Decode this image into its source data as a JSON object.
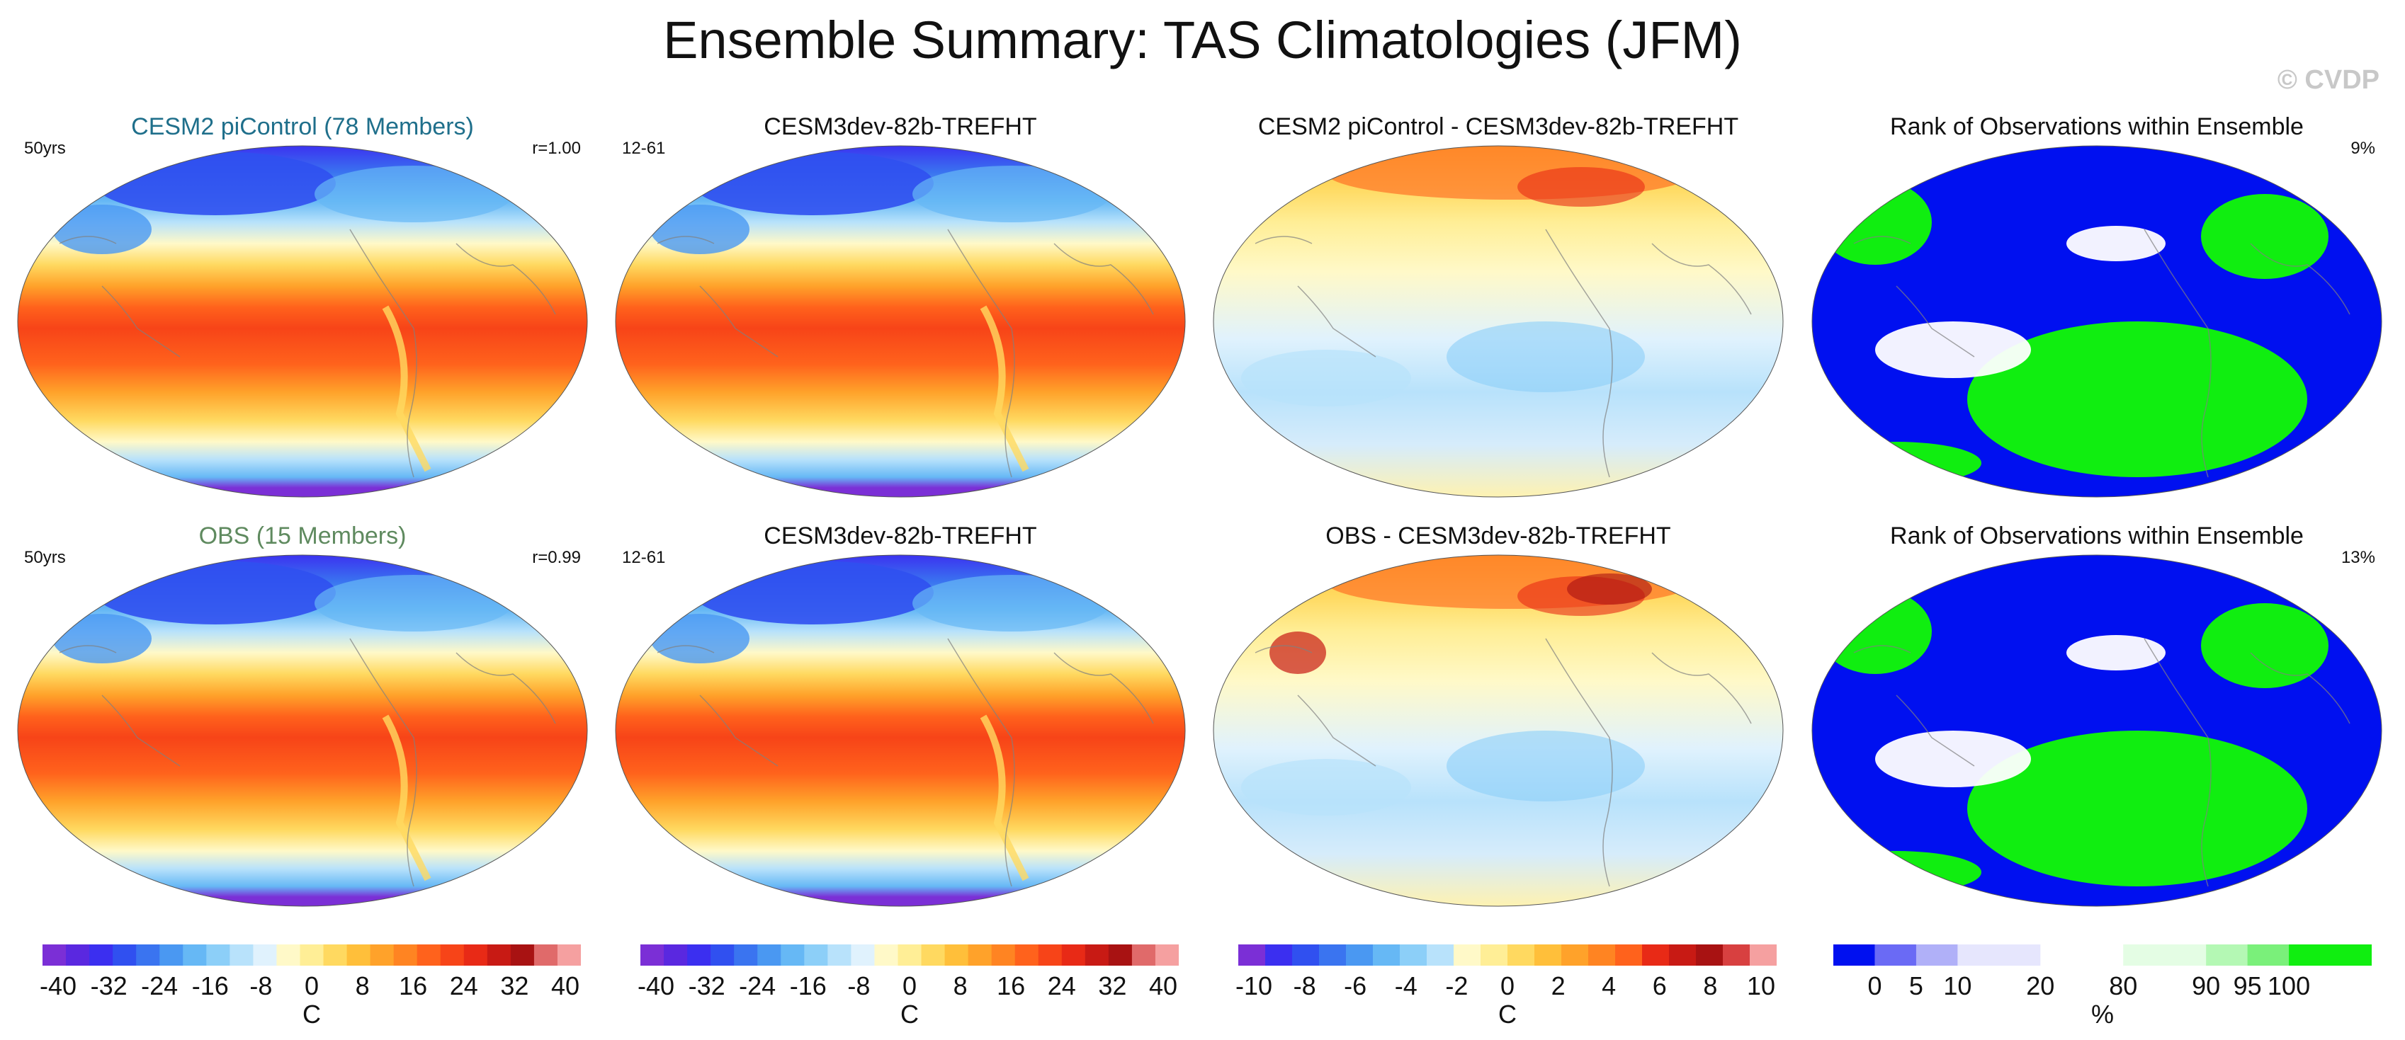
{
  "title": "Ensemble Summary: TAS Climatologies (JFM)",
  "watermark": "© CVDP",
  "panels": [
    {
      "title": "CESM2 piControl (78 Members)",
      "title_color": "#1f6f8b",
      "left": "50yrs",
      "right": "r=1.00",
      "field": "temp"
    },
    {
      "title": "CESM3dev-82b-TREFHT",
      "title_color": "#111111",
      "left": "12-61",
      "right": "",
      "field": "temp"
    },
    {
      "title": "CESM2 piControl - CESM3dev-82b-TREFHT",
      "title_color": "#111111",
      "left": "",
      "right": "",
      "field": "diff"
    },
    {
      "title": "Rank of Observations within Ensemble",
      "title_color": "#111111",
      "left": "",
      "right": "9%",
      "field": "rank"
    },
    {
      "title": "OBS (15 Members)",
      "title_color": "#5f8a5f",
      "left": "50yrs",
      "right": "r=0.99",
      "field": "temp"
    },
    {
      "title": "CESM3dev-82b-TREFHT",
      "title_color": "#111111",
      "left": "12-61",
      "right": "",
      "field": "temp"
    },
    {
      "title": "OBS - CESM3dev-82b-TREFHT",
      "title_color": "#111111",
      "left": "",
      "right": "",
      "field": "diff2"
    },
    {
      "title": "Rank of Observations within Ensemble",
      "title_color": "#111111",
      "left": "",
      "right": "13%",
      "field": "rank"
    }
  ],
  "colorbars": [
    {
      "ticks": [
        "-40",
        "-32",
        "-24",
        "-16",
        "-8",
        "0",
        "8",
        "16",
        "24",
        "32",
        "40"
      ],
      "unit": "C",
      "kind": "temp"
    },
    {
      "ticks": [
        "-40",
        "-32",
        "-24",
        "-16",
        "-8",
        "0",
        "8",
        "16",
        "24",
        "32",
        "40"
      ],
      "unit": "C",
      "kind": "temp"
    },
    {
      "ticks": [
        "-10",
        "-8",
        "-6",
        "-4",
        "-2",
        "0",
        "2",
        "4",
        "6",
        "8",
        "10"
      ],
      "unit": "C",
      "kind": "diff"
    },
    {
      "ticks": [
        "0",
        "5",
        "10",
        "20",
        "80",
        "90",
        "95",
        "100"
      ],
      "unit": "%",
      "kind": "rank"
    }
  ],
  "colors": {
    "temp_scale": [
      "#7b2fd6",
      "#5a28e0",
      "#3b2ff0",
      "#3050f0",
      "#3a74f0",
      "#4a98f2",
      "#66b8f5",
      "#8ccff8",
      "#b8e2fb",
      "#e0f2fd",
      "#fff9c8",
      "#ffee96",
      "#ffd960",
      "#ffbf3a",
      "#ffa22a",
      "#ff8422",
      "#ff621c",
      "#f74418",
      "#e82a16",
      "#c81a14",
      "#a81212",
      "#e06a6a",
      "#f5a0a0"
    ],
    "diff_scale": [
      "#7b2fd6",
      "#3b2ff0",
      "#3050f0",
      "#3a74f0",
      "#4a98f2",
      "#66b8f5",
      "#8ccff8",
      "#b8e2fb",
      "#fff9c8",
      "#ffee96",
      "#ffd960",
      "#ffbf3a",
      "#ffa22a",
      "#ff8422",
      "#ff621c",
      "#e82a16",
      "#c81a14",
      "#a81212",
      "#d84040",
      "#f5a0a0"
    ],
    "rank_scale": [
      "#0010f0",
      "#6a6af5",
      "#b0b0f8",
      "#e6e6fd",
      "#ffffff",
      "#e4fde4",
      "#b4f8b4",
      "#7af07a",
      "#10ee10"
    ]
  }
}
